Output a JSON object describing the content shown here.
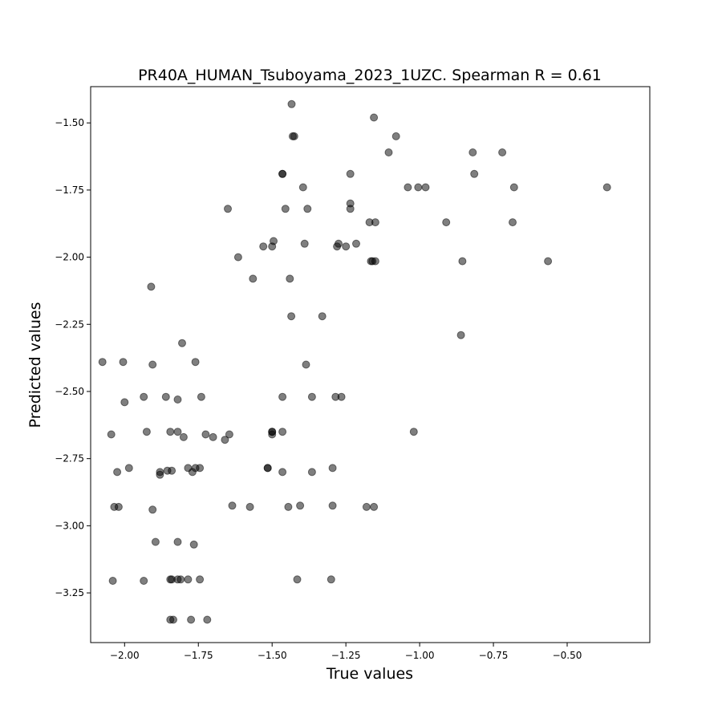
{
  "chart_data": {
    "type": "scatter",
    "title": "PR40A_HUMAN_Tsuboyama_2023_1UZC. Spearman R = 0.61",
    "xlabel": "True values",
    "ylabel": "Predicted values",
    "xlim": [
      -2.115,
      -0.22
    ],
    "ylim": [
      -3.435,
      -1.365
    ],
    "xticks": [
      -2.0,
      -1.75,
      -1.5,
      -1.25,
      -1.0,
      -0.75,
      -0.5
    ],
    "xtick_labels": [
      "−2.00",
      "−1.75",
      "−1.50",
      "−1.25",
      "−1.00",
      "−0.75",
      "−0.50"
    ],
    "yticks": [
      -1.5,
      -1.75,
      -2.0,
      -2.25,
      -2.5,
      -2.75,
      -3.0,
      -3.25
    ],
    "ytick_labels": [
      "−1.50",
      "−1.75",
      "−2.00",
      "−2.25",
      "−2.50",
      "−2.75",
      "−3.00",
      "−3.25"
    ],
    "marker_color": "#000000",
    "marker_alpha": 0.5,
    "points": [
      [
        -1.434,
        -1.43
      ],
      [
        -1.155,
        -1.48
      ],
      [
        -1.425,
        -1.55
      ],
      [
        -1.43,
        -1.55
      ],
      [
        -1.08,
        -1.55
      ],
      [
        -1.105,
        -1.61
      ],
      [
        -0.82,
        -1.61
      ],
      [
        -0.72,
        -1.61
      ],
      [
        -1.465,
        -1.69
      ],
      [
        -1.465,
        -1.69
      ],
      [
        -1.235,
        -1.69
      ],
      [
        -0.815,
        -1.69
      ],
      [
        -1.395,
        -1.74
      ],
      [
        -1.04,
        -1.74
      ],
      [
        -1.005,
        -1.74
      ],
      [
        -0.98,
        -1.74
      ],
      [
        -0.68,
        -1.74
      ],
      [
        -0.365,
        -1.74
      ],
      [
        -1.65,
        -1.82
      ],
      [
        -1.455,
        -1.82
      ],
      [
        -1.38,
        -1.82
      ],
      [
        -1.235,
        -1.82
      ],
      [
        -1.235,
        -1.8
      ],
      [
        -1.17,
        -1.87
      ],
      [
        -1.15,
        -1.87
      ],
      [
        -0.91,
        -1.87
      ],
      [
        -0.685,
        -1.87
      ],
      [
        -1.53,
        -1.96
      ],
      [
        -1.5,
        -1.96
      ],
      [
        -1.495,
        -1.94
      ],
      [
        -1.39,
        -1.95
      ],
      [
        -1.28,
        -1.96
      ],
      [
        -1.275,
        -1.95
      ],
      [
        -1.25,
        -1.96
      ],
      [
        -1.215,
        -1.95
      ],
      [
        -1.615,
        -2.0
      ],
      [
        -1.165,
        -2.015
      ],
      [
        -1.16,
        -2.015
      ],
      [
        -1.15,
        -2.015
      ],
      [
        -0.855,
        -2.015
      ],
      [
        -0.565,
        -2.015
      ],
      [
        -1.565,
        -2.08
      ],
      [
        -1.44,
        -2.08
      ],
      [
        -1.91,
        -2.11
      ],
      [
        -1.435,
        -2.22
      ],
      [
        -1.33,
        -2.22
      ],
      [
        -0.86,
        -2.29
      ],
      [
        -1.805,
        -2.32
      ],
      [
        -2.075,
        -2.39
      ],
      [
        -2.005,
        -2.39
      ],
      [
        -1.905,
        -2.4
      ],
      [
        -1.76,
        -2.39
      ],
      [
        -1.385,
        -2.4
      ],
      [
        -2.0,
        -2.54
      ],
      [
        -1.935,
        -2.52
      ],
      [
        -1.86,
        -2.52
      ],
      [
        -1.82,
        -2.53
      ],
      [
        -1.74,
        -2.52
      ],
      [
        -1.465,
        -2.52
      ],
      [
        -1.365,
        -2.52
      ],
      [
        -1.285,
        -2.52
      ],
      [
        -1.265,
        -2.52
      ],
      [
        -2.045,
        -2.66
      ],
      [
        -1.925,
        -2.65
      ],
      [
        -1.845,
        -2.65
      ],
      [
        -1.82,
        -2.65
      ],
      [
        -1.8,
        -2.67
      ],
      [
        -1.725,
        -2.66
      ],
      [
        -1.7,
        -2.67
      ],
      [
        -1.66,
        -2.68
      ],
      [
        -1.645,
        -2.66
      ],
      [
        -1.5,
        -2.65
      ],
      [
        -1.5,
        -2.66
      ],
      [
        -1.5,
        -2.65
      ],
      [
        -1.465,
        -2.65
      ],
      [
        -1.02,
        -2.65
      ],
      [
        -2.025,
        -2.8
      ],
      [
        -1.985,
        -2.785
      ],
      [
        -1.88,
        -2.8
      ],
      [
        -1.88,
        -2.81
      ],
      [
        -1.855,
        -2.795
      ],
      [
        -1.84,
        -2.795
      ],
      [
        -1.785,
        -2.785
      ],
      [
        -1.77,
        -2.8
      ],
      [
        -1.76,
        -2.785
      ],
      [
        -1.745,
        -2.785
      ],
      [
        -1.515,
        -2.785
      ],
      [
        -1.515,
        -2.785
      ],
      [
        -1.465,
        -2.8
      ],
      [
        -1.365,
        -2.8
      ],
      [
        -1.295,
        -2.785
      ],
      [
        -2.035,
        -2.93
      ],
      [
        -2.02,
        -2.93
      ],
      [
        -1.905,
        -2.94
      ],
      [
        -1.635,
        -2.925
      ],
      [
        -1.575,
        -2.93
      ],
      [
        -1.445,
        -2.93
      ],
      [
        -1.405,
        -2.925
      ],
      [
        -1.295,
        -2.925
      ],
      [
        -1.18,
        -2.93
      ],
      [
        -1.155,
        -2.93
      ],
      [
        -1.895,
        -3.06
      ],
      [
        -1.82,
        -3.06
      ],
      [
        -1.765,
        -3.07
      ],
      [
        -2.04,
        -3.205
      ],
      [
        -1.935,
        -3.205
      ],
      [
        -1.845,
        -3.2
      ],
      [
        -1.84,
        -3.2
      ],
      [
        -1.82,
        -3.2
      ],
      [
        -1.81,
        -3.2
      ],
      [
        -1.785,
        -3.2
      ],
      [
        -1.745,
        -3.2
      ],
      [
        -1.415,
        -3.2
      ],
      [
        -1.3,
        -3.2
      ],
      [
        -1.845,
        -3.35
      ],
      [
        -1.835,
        -3.35
      ],
      [
        -1.775,
        -3.35
      ],
      [
        -1.72,
        -3.35
      ]
    ]
  }
}
